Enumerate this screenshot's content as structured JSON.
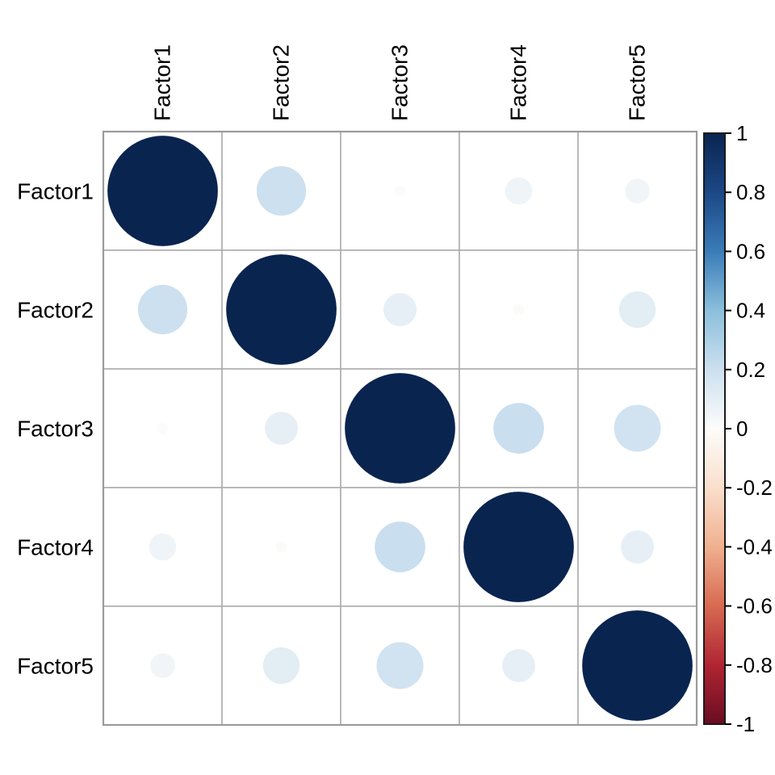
{
  "chart_data": {
    "type": "heatmap",
    "subtype": "correlation-bubble-matrix",
    "title": "",
    "categories": [
      "Factor1",
      "Factor2",
      "Factor3",
      "Factor4",
      "Factor5"
    ],
    "matrix": [
      [
        1.0,
        0.2,
        0.01,
        0.06,
        0.05
      ],
      [
        0.2,
        1.0,
        0.09,
        0.01,
        0.11
      ],
      [
        0.01,
        0.09,
        1.0,
        0.21,
        0.18
      ],
      [
        0.06,
        0.01,
        0.21,
        1.0,
        0.09
      ],
      [
        0.05,
        0.11,
        0.18,
        0.09,
        1.0
      ]
    ],
    "value_range": [
      -1,
      1
    ],
    "size_encoding": "circle area proportional to |r|; |r|=1 fills 93% of cell",
    "legend_position": "right",
    "grid_on": true,
    "colorbar": {
      "tick_values": [
        1,
        0.8,
        0.6,
        0.4,
        0.2,
        0,
        -0.2,
        -0.4,
        -0.6,
        -0.8,
        -1
      ],
      "tick_labels": [
        "1",
        "0.8",
        "0.6",
        "0.4",
        "0.2",
        "0",
        "-0.2",
        "-0.4",
        "-0.6",
        "-0.8",
        "-1"
      ]
    },
    "palette": {
      "name": "RdBu-diverging",
      "stops": [
        {
          "t": -1.0,
          "color": "#690C22"
        },
        {
          "t": -0.8,
          "color": "#B02533"
        },
        {
          "t": -0.6,
          "color": "#D76A51"
        },
        {
          "t": -0.4,
          "color": "#F0B08E"
        },
        {
          "t": -0.2,
          "color": "#FADFCD"
        },
        {
          "t": 0.0,
          "color": "#FDFCFB"
        },
        {
          "t": 0.2,
          "color": "#CCE0EF"
        },
        {
          "t": 0.4,
          "color": "#8BBFDC"
        },
        {
          "t": 0.6,
          "color": "#3A7CB8"
        },
        {
          "t": 0.8,
          "color": "#1C4886"
        },
        {
          "t": 1.0,
          "color": "#0A2450"
        }
      ]
    },
    "colors": {
      "background": "#FFFFFF",
      "cell_fill": "#FFFFFF",
      "grid_line": "#ADADAD",
      "outer_border": "#9B9B9B",
      "colorbar_border": "#1A1A1A",
      "tick_color": "#000000",
      "text": "#000000"
    }
  }
}
